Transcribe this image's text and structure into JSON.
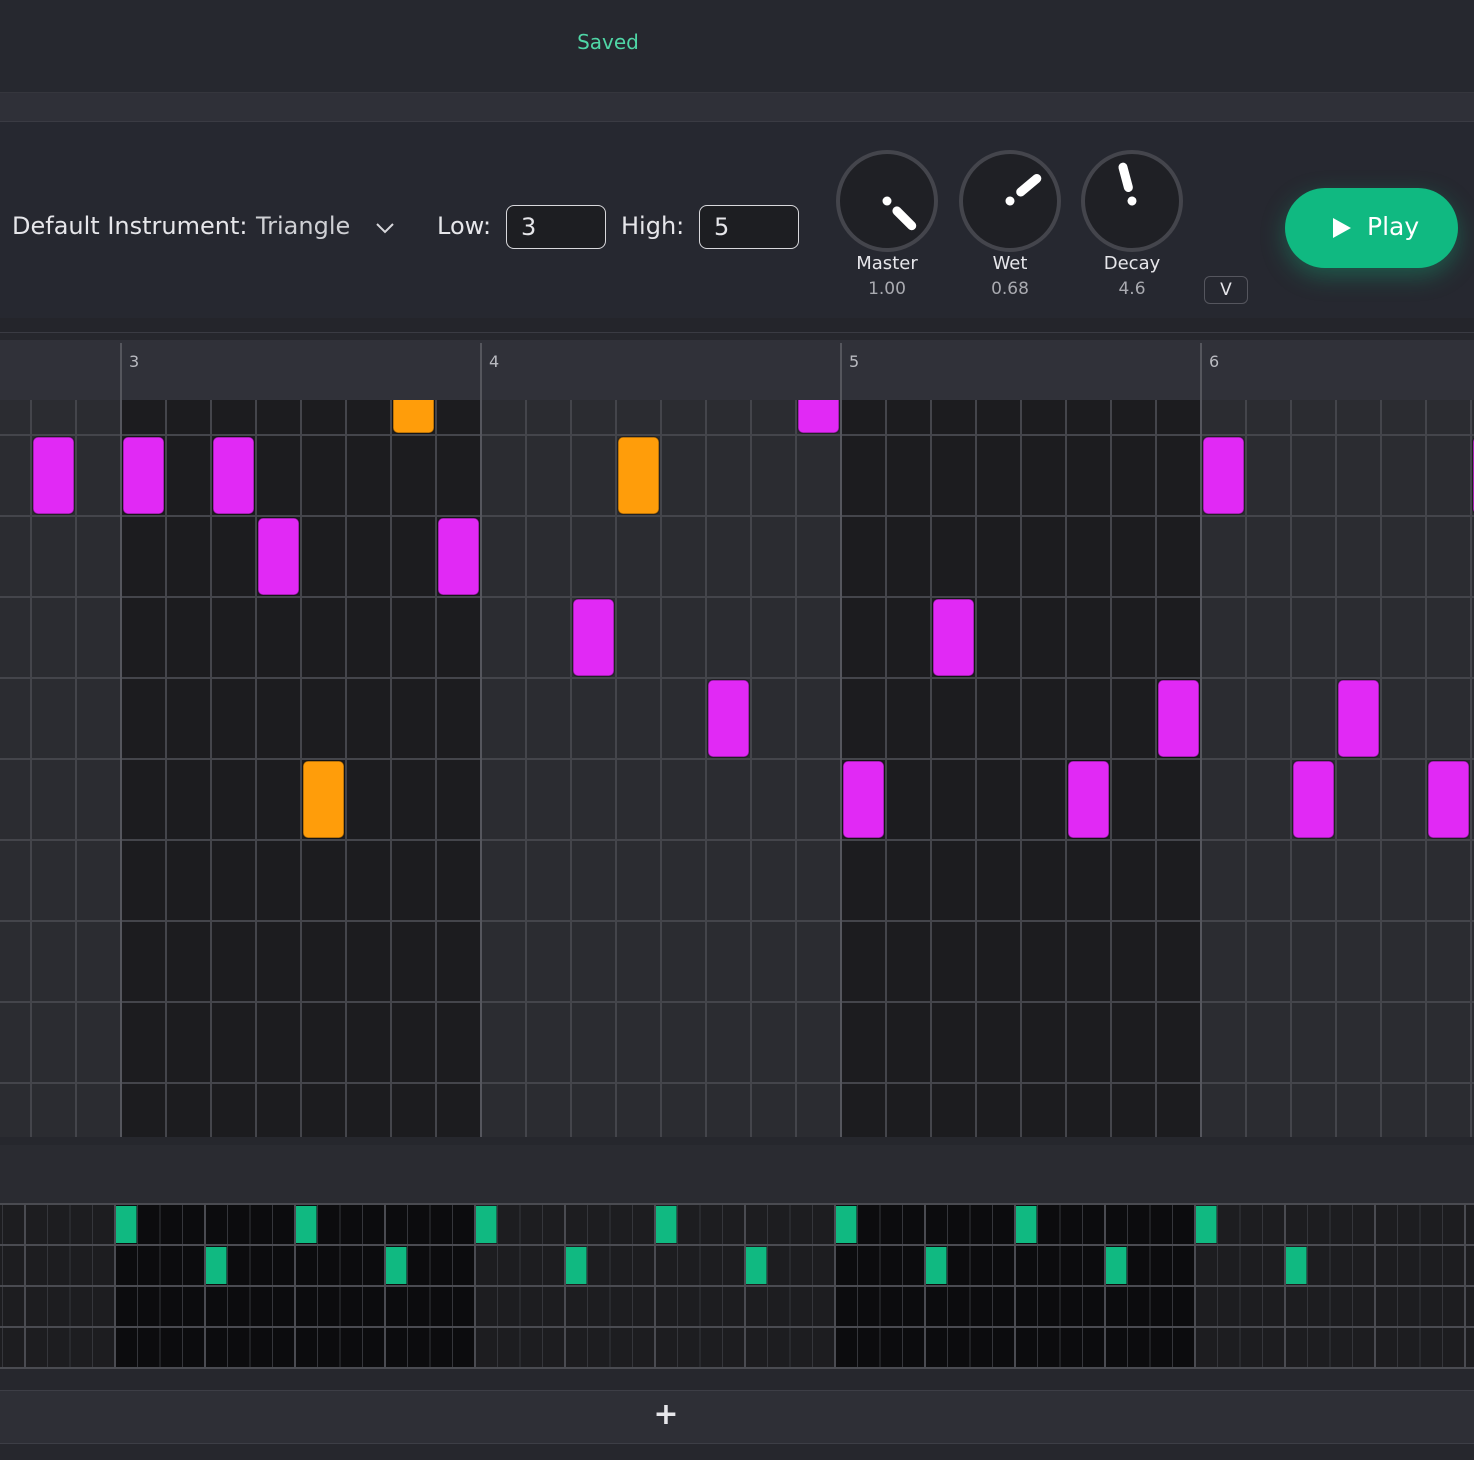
{
  "header": {
    "status": "Saved"
  },
  "toolbar": {
    "instrument_label": "Default Instrument:",
    "instrument": "Triangle",
    "low_label": "Low:",
    "low": "3",
    "high_label": "High:",
    "high": "5",
    "knobs": [
      {
        "label": "Master",
        "value": "1.00"
      },
      {
        "label": "Wet",
        "value": "0.68"
      },
      {
        "label": "Decay",
        "value": "4.6"
      }
    ],
    "toggle": "V",
    "play": "Play"
  },
  "timeline": {
    "bars": [
      "3",
      "4",
      "5",
      "6"
    ]
  },
  "add_track": "+"
}
